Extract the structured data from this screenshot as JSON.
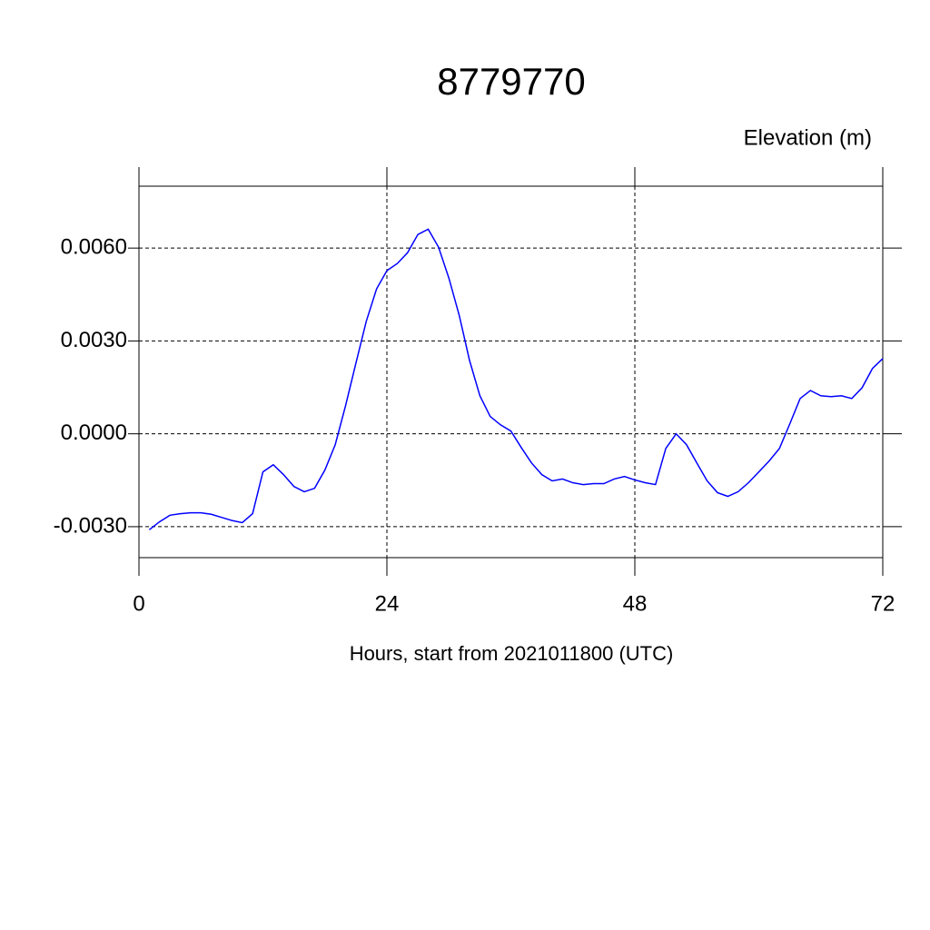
{
  "chart_data": {
    "type": "line",
    "title": "8779770",
    "y_label": "Elevation (m)",
    "x_label": "Hours, start from 2021011800 (UTC)",
    "x": [
      1,
      2,
      3,
      4,
      5,
      6,
      7,
      8,
      9,
      10,
      11,
      12,
      13,
      14,
      15,
      16,
      17,
      18,
      19,
      20,
      21,
      22,
      23,
      24,
      25,
      26,
      27,
      28,
      29,
      30,
      31,
      32,
      33,
      34,
      35,
      36,
      37,
      38,
      39,
      40,
      41,
      42,
      43,
      44,
      45,
      46,
      47,
      48,
      49,
      50,
      51,
      52,
      53,
      54,
      55,
      56,
      57,
      58,
      59,
      60,
      61,
      62,
      63,
      64,
      65,
      66,
      67,
      68,
      69,
      70,
      71,
      72
    ],
    "series": [
      {
        "name": "Elevation",
        "color": "#0000ff",
        "values": [
          -0.0031,
          -0.00284,
          -0.00263,
          -0.00258,
          -0.00255,
          -0.00255,
          -0.0026,
          -0.0027,
          -0.0028,
          -0.00287,
          -0.00258,
          -0.00123,
          -0.001,
          -0.00132,
          -0.0017,
          -0.00187,
          -0.00176,
          -0.00117,
          -0.00035,
          0.00091,
          0.00228,
          0.00363,
          0.00468,
          0.00527,
          0.0055,
          0.00585,
          0.00644,
          0.00661,
          0.00603,
          0.00503,
          0.00383,
          0.00237,
          0.00123,
          0.00056,
          0.00029,
          9e-05,
          -0.00044,
          -0.00094,
          -0.00132,
          -0.00152,
          -0.00146,
          -0.00158,
          -0.00164,
          -0.00161,
          -0.00161,
          -0.00146,
          -0.00138,
          -0.00149,
          -0.00158,
          -0.00164,
          -0.00047,
          0,
          -0.00035,
          -0.00094,
          -0.00152,
          -0.0019,
          -0.00202,
          -0.00187,
          -0.00158,
          -0.00123,
          -0.00088,
          -0.00047,
          0.00032,
          0.00114,
          0.0014,
          0.00123,
          0.0012,
          0.00123,
          0.00114,
          0.00149,
          0.00211,
          0.00243
        ]
      }
    ],
    "xlim": [
      0,
      72
    ],
    "xticks": [
      0,
      24,
      48,
      72
    ],
    "ylim": [
      -0.004,
      0.008
    ],
    "yticks": [
      {
        "value": -0.003,
        "label": "-0.0030"
      },
      {
        "value": 0,
        "label": "0.0000"
      },
      {
        "value": 0.003,
        "label": "0.0030"
      },
      {
        "value": 0.006,
        "label": "0.0060"
      }
    ],
    "grid": true
  }
}
